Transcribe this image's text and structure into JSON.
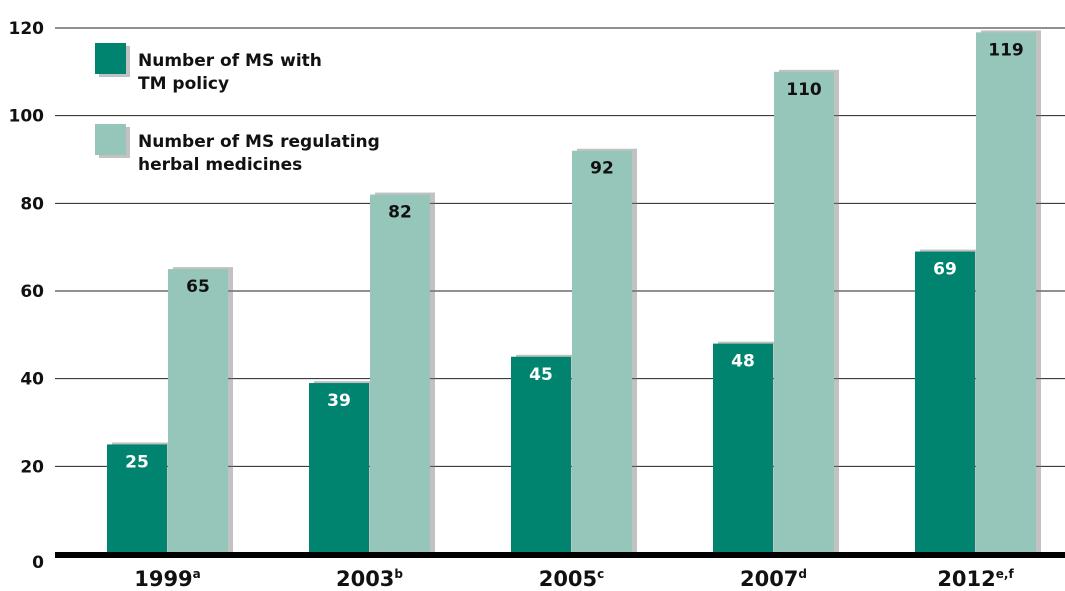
{
  "chart_data": {
    "type": "bar",
    "categories": [
      "1999",
      "2003",
      "2005",
      "2007",
      "2012"
    ],
    "category_superscripts": [
      "a",
      "b",
      "c",
      "d",
      "e,f"
    ],
    "series": [
      {
        "name": "Number of MS with TM policy",
        "legend_lines": [
          "Number of MS with",
          "TM policy"
        ],
        "values": [
          25,
          39,
          45,
          48,
          69
        ],
        "color": "#00836f",
        "label_color": "#ffffff"
      },
      {
        "name": "Number of MS regulating herbal medicines",
        "legend_lines": [
          "Number of MS regulating",
          "herbal medicines"
        ],
        "values": [
          65,
          82,
          92,
          110,
          119
        ],
        "color": "#96c6b9",
        "label_color": "#111111"
      }
    ],
    "y_ticks": [
      0,
      20,
      40,
      60,
      80,
      100,
      120
    ],
    "ylim": [
      0,
      120
    ],
    "title": "",
    "xlabel": "",
    "ylabel": "",
    "grid": true,
    "legend_position": "top-left"
  }
}
